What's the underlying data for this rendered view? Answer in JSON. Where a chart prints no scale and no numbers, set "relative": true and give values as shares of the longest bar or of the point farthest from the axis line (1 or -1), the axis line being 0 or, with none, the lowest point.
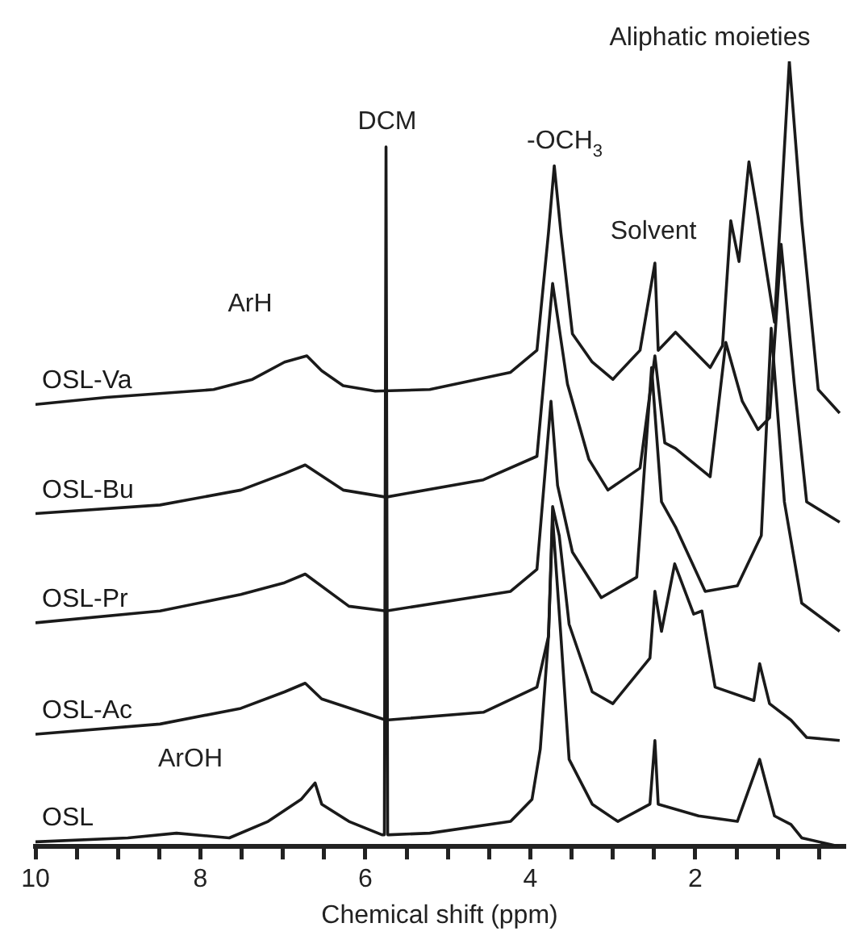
{
  "chart_data": {
    "type": "line",
    "relative": true,
    "xlabel": "Chemical shift (ppm)",
    "xlim": [
      10,
      0.2
    ],
    "xticks": [
      10,
      {
        "value": 9.5,
        "label": null
      },
      {
        "value": 9,
        "label": null
      },
      {
        "value": 8.5,
        "label": null
      },
      8,
      {
        "value": 7.5,
        "label": null
      },
      {
        "value": 7,
        "label": null
      },
      {
        "value": 6.5,
        "label": null
      },
      6,
      {
        "value": 5.5,
        "label": null
      },
      {
        "value": 5,
        "label": null
      },
      {
        "value": 4.5,
        "label": null
      },
      4,
      {
        "value": 3.5,
        "label": null
      },
      {
        "value": 3,
        "label": null
      },
      {
        "value": 2.5,
        "label": null
      },
      2,
      {
        "value": 1.5,
        "label": null
      },
      {
        "value": 1,
        "label": null
      },
      {
        "value": 0.5,
        "label": null
      }
    ],
    "grid": false,
    "legend": false,
    "marker": "none",
    "line_style": "solid",
    "series": [
      {
        "name": "OSL-Va",
        "color": "#1a1a1a",
        "x": [
          10,
          9.14,
          7.84,
          7.37,
          6.98,
          6.71,
          6.53,
          6.27,
          5.88,
          5.22,
          4.24,
          3.92,
          3.78,
          3.71,
          3.63,
          3.49,
          3.25,
          3.0,
          2.67,
          2.49,
          2.45,
          2.24,
          1.82,
          1.67,
          1.57,
          1.47,
          1.35,
          1.24,
          1.04,
          0.86,
          0.71,
          0.51,
          0.25
        ],
        "values": [
          0.563,
          0.572,
          0.582,
          0.595,
          0.617,
          0.625,
          0.606,
          0.587,
          0.58,
          0.582,
          0.604,
          0.632,
          0.782,
          0.867,
          0.782,
          0.653,
          0.617,
          0.595,
          0.632,
          0.743,
          0.632,
          0.655,
          0.61,
          0.638,
          0.797,
          0.745,
          0.872,
          0.803,
          0.668,
          1,
          0.797,
          0.582,
          0.552
        ]
      },
      {
        "name": "OSL-Bu",
        "color": "#1a1a1a",
        "x": [
          10,
          8.49,
          7.51,
          6.98,
          6.73,
          6.27,
          5.75,
          4.57,
          3.92,
          3.73,
          3.55,
          3.29,
          3.06,
          2.67,
          2.49,
          2.37,
          2.24,
          1.82,
          1.63,
          1.43,
          1.24,
          1.1,
          0.96,
          0.8,
          0.65,
          0.25
        ],
        "values": [
          0.424,
          0.435,
          0.454,
          0.475,
          0.486,
          0.454,
          0.445,
          0.467,
          0.497,
          0.717,
          0.589,
          0.493,
          0.454,
          0.482,
          0.625,
          0.514,
          0.507,
          0.471,
          0.642,
          0.567,
          0.531,
          0.546,
          0.767,
          0.589,
          0.439,
          0.413
        ]
      },
      {
        "name": "OSL-Pr",
        "color": "#1a1a1a",
        "x": [
          10,
          8.49,
          7.51,
          6.98,
          6.73,
          6.2,
          5.75,
          4.24,
          3.92,
          3.75,
          3.67,
          3.49,
          3.14,
          2.71,
          2.53,
          2.41,
          2.24,
          1.88,
          1.49,
          1.2,
          1.08,
          0.92,
          0.71,
          0.25
        ],
        "values": [
          0.285,
          0.3,
          0.321,
          0.336,
          0.347,
          0.306,
          0.3,
          0.325,
          0.353,
          0.567,
          0.46,
          0.375,
          0.317,
          0.343,
          0.61,
          0.439,
          0.407,
          0.325,
          0.332,
          0.396,
          0.66,
          0.439,
          0.31,
          0.274
        ]
      },
      {
        "name": "OSL-Ac",
        "color": "#1a1a1a",
        "x": [
          10,
          8.49,
          7.51,
          6.98,
          6.73,
          6.53,
          5.75,
          4.57,
          3.92,
          3.78,
          3.73,
          3.65,
          3.53,
          3.25,
          3.0,
          2.55,
          2.49,
          2.41,
          2.25,
          2.02,
          1.92,
          1.76,
          1.29,
          1.22,
          1.1,
          0.84,
          0.65,
          0.25
        ],
        "values": [
          0.143,
          0.156,
          0.176,
          0.197,
          0.208,
          0.188,
          0.161,
          0.171,
          0.203,
          0.268,
          0.433,
          0.396,
          0.283,
          0.197,
          0.182,
          0.24,
          0.325,
          0.274,
          0.36,
          0.296,
          0.3,
          0.203,
          0.186,
          0.233,
          0.182,
          0.161,
          0.139,
          0.135
        ]
      },
      {
        "name": "OSL",
        "color": "#1a1a1a",
        "x": [
          10,
          8.88,
          8.29,
          7.65,
          7.18,
          6.78,
          6.61,
          6.53,
          6.2,
          5.8,
          5.77,
          5.75,
          5.73,
          5.71,
          5.22,
          4.24,
          3.98,
          3.88,
          3.78,
          3.73,
          3.63,
          3.53,
          3.25,
          2.94,
          2.55,
          2.49,
          2.45,
          1.96,
          1.49,
          1.22,
          1.04,
          0.84,
          0.71,
          0.25
        ],
        "values": [
          0.006,
          0.011,
          0.017,
          0.011,
          0.032,
          0.06,
          0.081,
          0.054,
          0.032,
          0.015,
          0.015,
          0.891,
          0.015,
          0.015,
          0.017,
          0.032,
          0.06,
          0.124,
          0.268,
          0.418,
          0.268,
          0.111,
          0.054,
          0.032,
          0.054,
          0.135,
          0.054,
          0.039,
          0.032,
          0.111,
          0.039,
          0.028,
          0.011,
          0
        ]
      }
    ],
    "annotations": [
      "ArH",
      "DCM",
      "-OCH$_{3}$",
      "Solvent",
      "Aliphatic moieties",
      "ArOH"
    ]
  }
}
